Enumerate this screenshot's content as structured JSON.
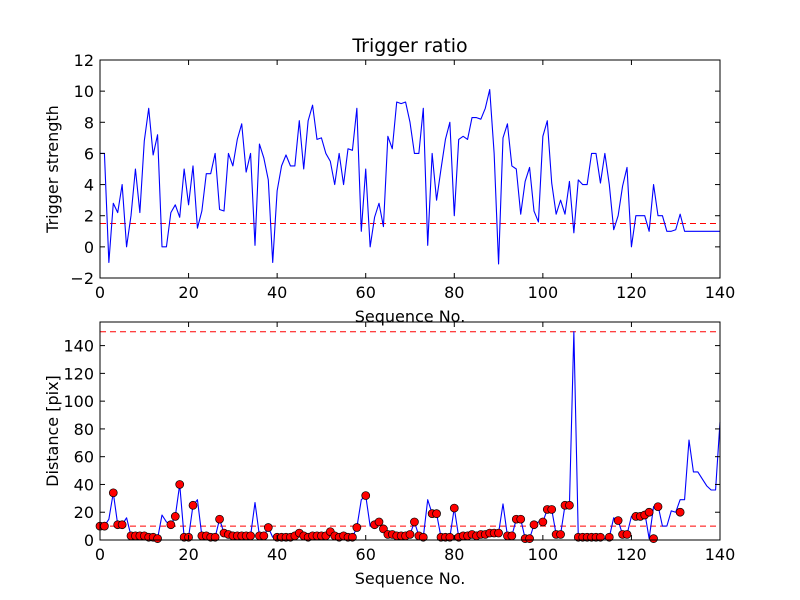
{
  "chart_data": [
    {
      "type": "line",
      "title": "Trigger ratio",
      "xlabel": "Sequence No.",
      "ylabel": "Trigger strength",
      "xlim": [
        0,
        140
      ],
      "ylim": [
        -2,
        12
      ],
      "xticks": [
        0,
        20,
        40,
        60,
        80,
        100,
        120,
        140
      ],
      "yticks": [
        -2,
        0,
        2,
        4,
        6,
        8,
        10,
        12
      ],
      "grid": false,
      "series": [
        {
          "color": "#0000ff",
          "x": [
            0,
            1,
            2,
            3,
            4,
            5,
            6,
            7,
            8,
            9,
            10,
            11,
            12,
            13,
            14,
            15,
            16,
            17,
            18,
            19,
            20,
            21,
            22,
            23,
            24,
            25,
            26,
            27,
            28,
            29,
            30,
            31,
            32,
            33,
            34,
            35,
            36,
            37,
            38,
            39,
            40,
            41,
            42,
            43,
            44,
            45,
            46,
            47,
            48,
            49,
            50,
            51,
            52,
            53,
            54,
            55,
            56,
            57,
            58,
            59,
            60,
            61,
            62,
            63,
            64,
            65,
            66,
            67,
            68,
            69,
            70,
            71,
            72,
            73,
            74,
            75,
            76,
            77,
            78,
            79,
            80,
            81,
            82,
            83,
            84,
            85,
            86,
            87,
            88,
            89,
            90,
            91,
            92,
            93,
            94,
            95,
            96,
            97,
            98,
            99,
            100,
            101,
            102,
            103,
            104,
            105,
            106,
            107,
            108,
            109,
            110,
            111,
            112,
            113,
            114,
            115,
            116,
            117,
            118,
            119,
            120,
            121,
            122,
            123,
            124,
            125,
            126,
            127,
            128,
            129,
            130,
            131,
            132,
            133,
            134,
            135,
            136,
            137,
            138,
            139,
            140
          ],
          "y": [
            6.0,
            6.0,
            -1.0,
            2.8,
            2.2,
            4.0,
            0.0,
            2.0,
            5.0,
            2.2,
            6.8,
            8.9,
            5.9,
            7.2,
            0.0,
            0.0,
            2.2,
            2.7,
            1.9,
            5.0,
            2.7,
            5.2,
            1.2,
            2.3,
            4.7,
            4.7,
            6.0,
            2.4,
            2.3,
            6.0,
            5.2,
            6.9,
            7.9,
            4.8,
            6.0,
            0.1,
            6.6,
            5.7,
            4.3,
            -1.0,
            3.6,
            5.2,
            5.9,
            5.2,
            5.2,
            8.1,
            5.0,
            8.1,
            9.1,
            6.9,
            7.0,
            6.0,
            5.5,
            4.0,
            6.0,
            4.0,
            6.3,
            6.2,
            8.9,
            1.0,
            5.0,
            0.0,
            1.9,
            2.8,
            1.3,
            7.1,
            6.3,
            9.3,
            9.2,
            9.3,
            8.0,
            6.0,
            6.0,
            8.9,
            0.1,
            6.0,
            3.0,
            5.0,
            6.9,
            8.0,
            2.0,
            6.9,
            7.1,
            6.9,
            8.3,
            8.3,
            8.2,
            8.9,
            10.1,
            6.0,
            -1.1,
            7.0,
            7.9,
            5.2,
            5.0,
            2.1,
            4.2,
            5.1,
            2.3,
            1.6,
            7.1,
            8.1,
            4.1,
            2.1,
            3.0,
            2.1,
            4.2,
            0.9,
            4.3,
            4.0,
            4.0,
            6.0,
            6.0,
            4.1,
            6.0,
            4.0,
            1.1,
            2.0,
            3.9,
            5.1,
            0.0,
            2.0,
            2.0,
            2.0,
            1.0,
            4.0,
            2.0,
            2.0,
            1.0,
            1.0,
            1.1,
            2.1,
            1.0,
            1.0,
            1.0,
            1.0,
            1.0,
            1.0,
            1.0,
            1.0,
            1.0
          ]
        }
      ],
      "threshold": {
        "value": 1.5,
        "color": "#ff0000",
        "style": "dashed"
      }
    },
    {
      "type": "line",
      "title": "",
      "xlabel": "Sequence No.",
      "ylabel": "Distance [pix]",
      "xlim": [
        0,
        140
      ],
      "ylim": [
        0,
        157
      ],
      "xticks": [
        0,
        20,
        40,
        60,
        80,
        100,
        120,
        140
      ],
      "yticks": [
        0,
        20,
        40,
        60,
        80,
        100,
        120,
        140
      ],
      "grid": false,
      "series": [
        {
          "color": "#0000ff",
          "x": [
            0,
            1,
            2,
            3,
            4,
            5,
            6,
            7,
            8,
            9,
            10,
            11,
            12,
            13,
            14,
            15,
            16,
            17,
            18,
            19,
            20,
            21,
            22,
            23,
            24,
            25,
            26,
            27,
            28,
            29,
            30,
            31,
            32,
            33,
            34,
            35,
            36,
            37,
            38,
            39,
            40,
            41,
            42,
            43,
            44,
            45,
            46,
            47,
            48,
            49,
            50,
            51,
            52,
            53,
            54,
            55,
            56,
            57,
            58,
            59,
            60,
            61,
            62,
            63,
            64,
            65,
            66,
            67,
            68,
            69,
            70,
            71,
            72,
            73,
            74,
            75,
            76,
            77,
            78,
            79,
            80,
            81,
            82,
            83,
            84,
            85,
            86,
            87,
            88,
            89,
            90,
            91,
            92,
            93,
            94,
            95,
            96,
            97,
            98,
            99,
            100,
            101,
            102,
            103,
            104,
            105,
            106,
            107,
            108,
            109,
            110,
            111,
            112,
            113,
            114,
            115,
            116,
            117,
            118,
            119,
            120,
            121,
            122,
            123,
            124,
            125,
            126,
            127,
            128,
            129,
            130,
            131,
            132,
            133,
            134,
            135,
            136,
            137,
            138,
            139,
            140
          ],
          "y": [
            10,
            10,
            15,
            34,
            11,
            11,
            16,
            3,
            3,
            3,
            3,
            2,
            2,
            1,
            18,
            13,
            11,
            17,
            40,
            2,
            2,
            25,
            29,
            3,
            3,
            2,
            2,
            15,
            5,
            4,
            3,
            3,
            3,
            3,
            3,
            27,
            3,
            3,
            9,
            2,
            2,
            2,
            2,
            3,
            3,
            5,
            3,
            2,
            3,
            3,
            3,
            3,
            6,
            3,
            2,
            3,
            2,
            2,
            9,
            29,
            32,
            10,
            11,
            13,
            8,
            4,
            4,
            3,
            3,
            3,
            4,
            13,
            3,
            2,
            29,
            19,
            19,
            2,
            2,
            2,
            23,
            2,
            3,
            3,
            4,
            3,
            4,
            4,
            5,
            5,
            5,
            26,
            3,
            3,
            15,
            15,
            1,
            1,
            11,
            13,
            13,
            22,
            22,
            4,
            4,
            25,
            25,
            150,
            2,
            2,
            2,
            2,
            2,
            2,
            1,
            2,
            16,
            14,
            4,
            4,
            17,
            17,
            18,
            20,
            1,
            24,
            25,
            10,
            10,
            21,
            20,
            29,
            29,
            72,
            49,
            49,
            44,
            39,
            36,
            36,
            85
          ]
        }
      ],
      "markers": {
        "color": "#ff0000",
        "edgecolor": "#000000",
        "x": [
          0,
          1,
          3,
          4,
          5,
          7,
          8,
          9,
          10,
          11,
          12,
          13,
          16,
          17,
          18,
          19,
          20,
          21,
          23,
          24,
          25,
          26,
          27,
          28,
          29,
          30,
          31,
          32,
          33,
          34,
          36,
          37,
          38,
          40,
          41,
          42,
          43,
          44,
          45,
          46,
          47,
          48,
          49,
          50,
          51,
          52,
          53,
          54,
          55,
          56,
          57,
          58,
          60,
          62,
          63,
          64,
          65,
          66,
          67,
          68,
          69,
          70,
          71,
          72,
          73,
          75,
          76,
          77,
          78,
          79,
          80,
          81,
          82,
          83,
          84,
          85,
          86,
          87,
          88,
          89,
          90,
          92,
          93,
          94,
          95,
          96,
          97,
          98,
          100,
          101,
          102,
          103,
          104,
          105,
          106,
          108,
          109,
          110,
          111,
          112,
          113,
          115,
          117,
          118,
          119,
          121,
          122,
          123,
          124,
          125,
          126,
          131
        ],
        "y": [
          10,
          10,
          34,
          11,
          11,
          3,
          3,
          3,
          3,
          2,
          2,
          1,
          11,
          17,
          40,
          2,
          2,
          25,
          3,
          3,
          2,
          2,
          15,
          5,
          4,
          3,
          3,
          3,
          3,
          3,
          3,
          3,
          9,
          2,
          2,
          2,
          2,
          3,
          5,
          3,
          2,
          3,
          3,
          3,
          3,
          6,
          3,
          2,
          3,
          2,
          2,
          9,
          32,
          11,
          13,
          8,
          4,
          4,
          3,
          3,
          3,
          4,
          13,
          3,
          2,
          19,
          19,
          2,
          2,
          2,
          23,
          2,
          3,
          3,
          4,
          3,
          4,
          4,
          5,
          5,
          5,
          3,
          3,
          15,
          15,
          1,
          1,
          11,
          13,
          22,
          22,
          4,
          4,
          25,
          25,
          2,
          2,
          2,
          2,
          2,
          2,
          2,
          14,
          4,
          4,
          17,
          17,
          18,
          20,
          1,
          24,
          20
        ]
      },
      "thresholds": [
        {
          "value": 150,
          "color": "#ff0000",
          "style": "dashed"
        },
        {
          "value": 10,
          "color": "#ff0000",
          "style": "dashed"
        }
      ]
    }
  ]
}
